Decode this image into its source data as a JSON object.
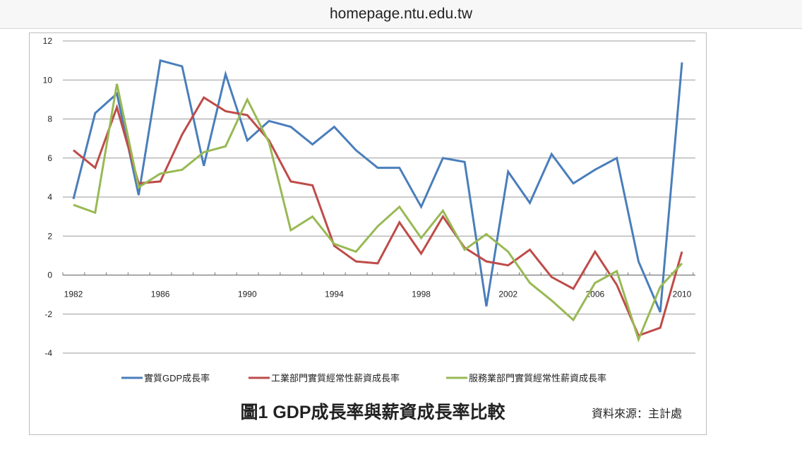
{
  "browser": {
    "url": "homepage.ntu.edu.tw"
  },
  "chart_data": {
    "type": "line",
    "title": "圖1 GDP成長率與薪資成長率比較",
    "source_note": "資料來源：主計處",
    "xlabel": "",
    "ylabel": "",
    "x": [
      1982,
      1983,
      1984,
      1985,
      1986,
      1987,
      1988,
      1989,
      1990,
      1991,
      1992,
      1993,
      1994,
      1995,
      1996,
      1997,
      1998,
      1999,
      2000,
      2001,
      2002,
      2003,
      2004,
      2005,
      2006,
      2007,
      2008,
      2009,
      2010
    ],
    "x_tick_labels": [
      "1982",
      "1986",
      "1990",
      "1994",
      "1998",
      "2002",
      "2006",
      "2010"
    ],
    "y_tick_labels": [
      "12",
      "10",
      "8",
      "6",
      "4",
      "2",
      "0",
      "-2",
      "-4"
    ],
    "ylim": [
      -4,
      12
    ],
    "xlim": [
      1982,
      2010
    ],
    "grid": true,
    "legend_position": "bottom",
    "series": [
      {
        "name": "實質GDP成長率",
        "color": "#4a7ebb",
        "values": [
          3.9,
          8.3,
          9.3,
          4.1,
          11.0,
          10.7,
          5.6,
          10.3,
          6.9,
          7.9,
          7.6,
          6.7,
          7.6,
          6.4,
          5.5,
          5.5,
          3.5,
          6.0,
          5.8,
          -1.6,
          5.3,
          3.7,
          6.2,
          4.7,
          5.4,
          6.0,
          0.7,
          -1.9,
          10.9
        ]
      },
      {
        "name": "工業部門實質經常性薪資成長率",
        "color": "#be4b48",
        "values": [
          6.4,
          5.5,
          8.6,
          4.7,
          4.8,
          7.2,
          9.1,
          8.4,
          8.2,
          6.9,
          4.8,
          4.6,
          1.5,
          0.7,
          0.6,
          2.7,
          1.1,
          3.0,
          1.4,
          0.7,
          0.5,
          1.3,
          -0.1,
          -0.7,
          1.2,
          -0.5,
          -3.1,
          -2.7,
          1.2
        ]
      },
      {
        "name": "服務業部門實質經常性薪資成長率",
        "color": "#98b954",
        "values": [
          3.6,
          3.2,
          9.8,
          4.5,
          5.2,
          5.4,
          6.3,
          6.6,
          9.0,
          6.8,
          2.3,
          3.0,
          1.6,
          1.2,
          2.5,
          3.5,
          1.9,
          3.3,
          1.3,
          2.1,
          1.2,
          -0.4,
          -1.3,
          -2.3,
          -0.4,
          0.2,
          -3.3,
          -0.6,
          0.6
        ]
      }
    ]
  }
}
